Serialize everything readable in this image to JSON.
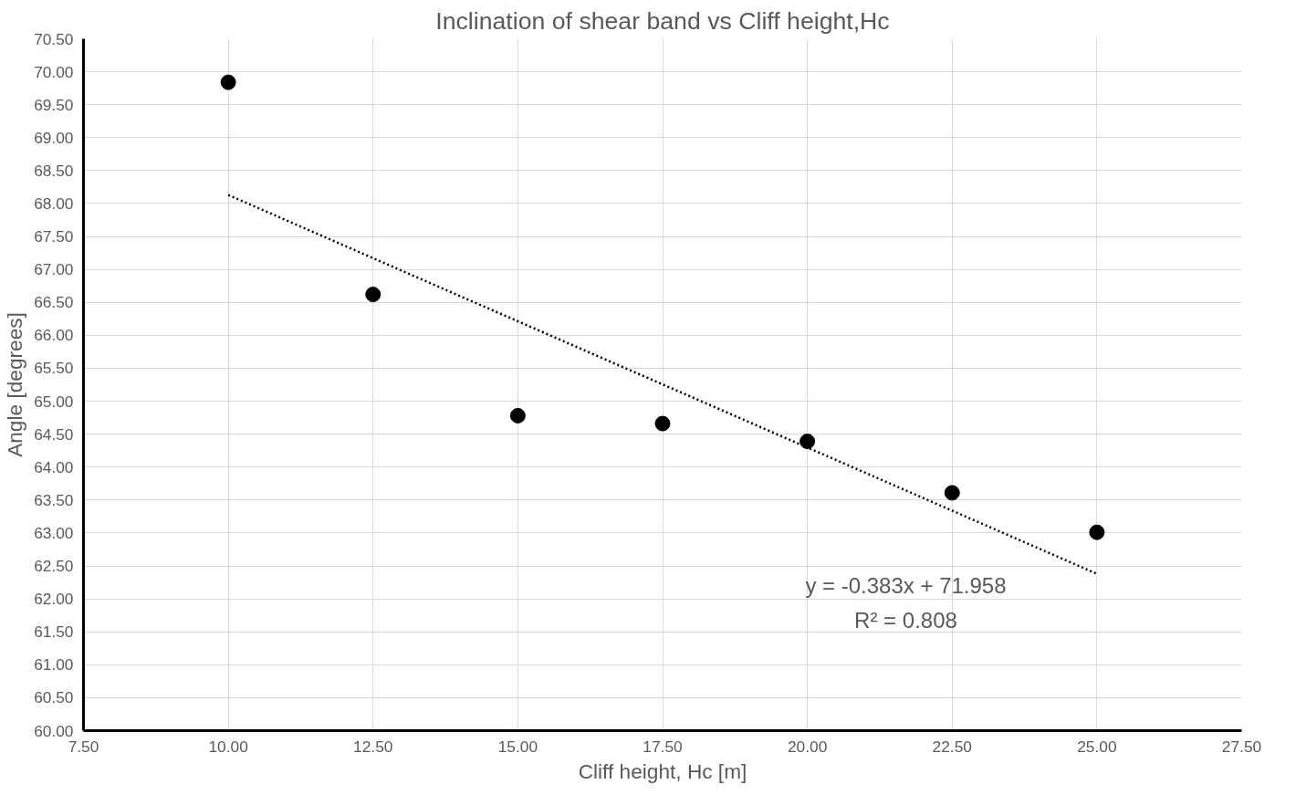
{
  "chart_data": {
    "type": "scatter",
    "title": "Inclination of shear band vs Cliff height,Hc",
    "xlabel": "Cliff height, Hc [m]",
    "ylabel": "Angle [degrees]",
    "x": [
      10,
      12.5,
      15,
      17.5,
      20,
      22.5,
      25
    ],
    "series": [
      {
        "color": "#000000",
        "marker": "circle",
        "values": [
          69.84,
          66.62,
          64.78,
          64.66,
          64.39,
          63.61,
          63.01
        ]
      },
      {
        "type": "line",
        "color": "#000000",
        "line_style": "dotted",
        "marker": "none",
        "x": [
          10,
          25
        ],
        "values": [
          68.13,
          62.38
        ]
      }
    ],
    "xlim": [
      7.5,
      27.5
    ],
    "xticks": [
      {
        "value": 7.5,
        "label": "7.50"
      },
      {
        "value": 10,
        "label": "10.00"
      },
      {
        "value": 12.5,
        "label": "12.50"
      },
      {
        "value": 15,
        "label": "15.00"
      },
      {
        "value": 17.5,
        "label": "17.50"
      },
      {
        "value": 20,
        "label": "20.00"
      },
      {
        "value": 22.5,
        "label": "22.50"
      },
      {
        "value": 25,
        "label": "25.00"
      },
      {
        "value": 27.5,
        "label": "27.50"
      }
    ],
    "ylim": [
      60,
      70.5
    ],
    "yticks": [
      {
        "value": 60,
        "label": "60.00"
      },
      {
        "value": 60.5,
        "label": "60.50"
      },
      {
        "value": 61,
        "label": "61.00"
      },
      {
        "value": 61.5,
        "label": "61.50"
      },
      {
        "value": 62,
        "label": "62.00"
      },
      {
        "value": 62.5,
        "label": "62.50"
      },
      {
        "value": 63,
        "label": "63.00"
      },
      {
        "value": 63.5,
        "label": "63.50"
      },
      {
        "value": 64,
        "label": "64.00"
      },
      {
        "value": 64.5,
        "label": "64.50"
      },
      {
        "value": 65,
        "label": "65.00"
      },
      {
        "value": 65.5,
        "label": "65.50"
      },
      {
        "value": 66,
        "label": "66.00"
      },
      {
        "value": 66.5,
        "label": "66.50"
      },
      {
        "value": 67,
        "label": "67.00"
      },
      {
        "value": 67.5,
        "label": "67.50"
      },
      {
        "value": 68,
        "label": "68.00"
      },
      {
        "value": 68.5,
        "label": "68.50"
      },
      {
        "value": 69,
        "label": "69.00"
      },
      {
        "value": 69.5,
        "label": "69.50"
      },
      {
        "value": 70,
        "label": "70.00"
      },
      {
        "value": 70.5,
        "label": "70.50"
      }
    ],
    "grid": true,
    "annotations": [
      "y = -0.383x + 71.958",
      "R² = 0.808"
    ]
  }
}
